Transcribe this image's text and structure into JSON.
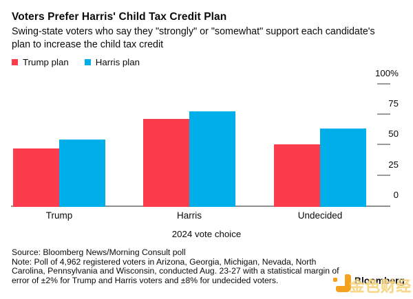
{
  "title": "Voters Prefer Harris' Child Tax Credit Plan",
  "subtitle": "Swing-state voters who say they \"strongly\" or \"somewhat\" support each candidate's plan to increase the child tax credit",
  "legend": {
    "items": [
      {
        "label": "Trump plan",
        "color": "#fa3c4d"
      },
      {
        "label": "Harris plan",
        "color": "#00aeea"
      }
    ]
  },
  "chart_data": {
    "type": "bar",
    "categories": [
      "Trump",
      "Harris",
      "Undecided"
    ],
    "series": [
      {
        "name": "Trump plan",
        "color": "#fa3c4d",
        "values": [
          47,
          71,
          50
        ]
      },
      {
        "name": "Harris plan",
        "color": "#00aeea",
        "values": [
          54,
          77,
          63
        ]
      }
    ],
    "title": "Voters Prefer Harris' Child Tax Credit Plan",
    "xlabel": "2024 vote choice",
    "ylabel": "",
    "ylim": [
      0,
      100
    ],
    "y_ticks": [
      0,
      25,
      50,
      75,
      100
    ],
    "y_tick_labels": [
      "0",
      "25",
      "50",
      "75",
      "100%"
    ],
    "grid": false,
    "legend_position": "top-left"
  },
  "footer": {
    "source": "Source: Bloomberg News/Morning Consult poll",
    "note": "Note: Poll of 4,962 registered voters in Arizona, Georgia, Michigan, Nevada, North Carolina, Pennsylvania and Wisconsin, conducted Aug. 23-27 with a statistical margin of error of ±2% for Trump and Harris voters and ±8% for undecided voters.",
    "brand": "Bloomberg",
    "watermark": "金色财经"
  },
  "colors": {
    "trump_plan": "#fa3c4d",
    "harris_plan": "#00aeea",
    "axis": "#8f8f8f",
    "tick": "#9b9b9b",
    "background": "#ffffff",
    "text": "#0a0a0a",
    "brand_icon": "#f4a21d"
  }
}
